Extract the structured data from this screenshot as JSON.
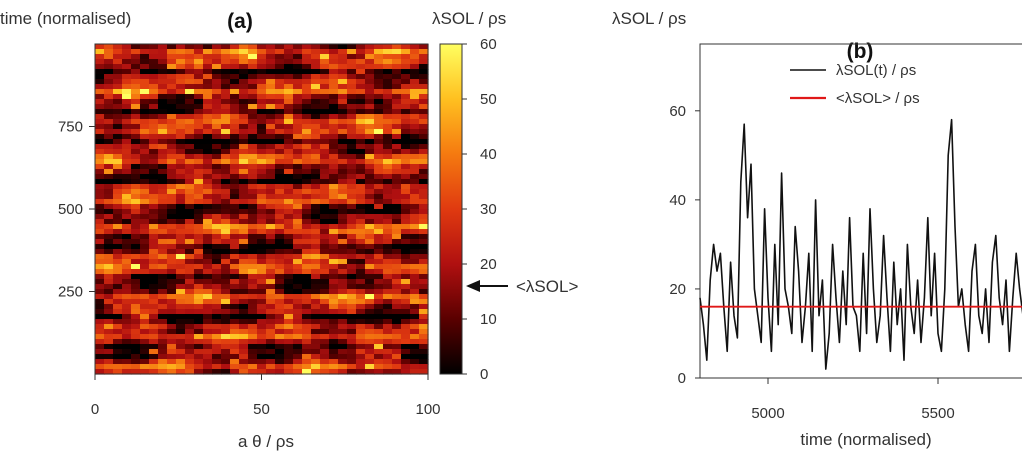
{
  "chart_data": [
    {
      "type": "heatmap",
      "panel_label": "(a)",
      "ylabel": "time (normalised)",
      "xlabel": "a θ / ρs",
      "xlim": [
        0,
        100
      ],
      "ylim": [
        0,
        1000
      ],
      "x_ticks": [
        "0",
        "50",
        "100"
      ],
      "y_ticks": [
        "250",
        "500",
        "750"
      ],
      "colorbar": {
        "label": "λSOL / ρs",
        "range": [
          0,
          60
        ],
        "ticks": [
          "0",
          "10",
          "20",
          "30",
          "40",
          "50",
          "60"
        ],
        "colormap": [
          "#000000",
          "#5a0000",
          "#b01010",
          "#e03a10",
          "#f57a10",
          "#ffc020",
          "#ffff60"
        ],
        "mean_value": 16,
        "mean_annotation": "<λSOL>"
      }
    },
    {
      "type": "line",
      "panel_label": "(b)",
      "ylabel": "λSOL / ρs",
      "xlabel": "time (normalised)",
      "xlim": [
        4800,
        5800
      ],
      "ylim": [
        0,
        75
      ],
      "x_ticks": [
        "5000",
        "5500"
      ],
      "y_ticks": [
        "0",
        "20",
        "40",
        "60"
      ],
      "legend_position": "top-right",
      "series": [
        {
          "name": "λSOL(t) / ρs",
          "color": "#111111",
          "x": [
            4800,
            4810,
            4820,
            4830,
            4840,
            4850,
            4860,
            4870,
            4880,
            4890,
            4900,
            4910,
            4920,
            4930,
            4940,
            4950,
            4960,
            4970,
            4980,
            4990,
            5000,
            5010,
            5020,
            5030,
            5040,
            5050,
            5060,
            5070,
            5080,
            5090,
            5100,
            5110,
            5120,
            5130,
            5140,
            5150,
            5160,
            5170,
            5180,
            5190,
            5200,
            5210,
            5220,
            5230,
            5240,
            5250,
            5260,
            5270,
            5280,
            5290,
            5300,
            5310,
            5320,
            5330,
            5340,
            5350,
            5360,
            5370,
            5380,
            5390,
            5400,
            5410,
            5420,
            5430,
            5440,
            5450,
            5460,
            5470,
            5480,
            5490,
            5500,
            5510,
            5520,
            5530,
            5540,
            5550,
            5560,
            5570,
            5580,
            5590,
            5600,
            5610,
            5620,
            5630,
            5640,
            5650,
            5660,
            5670,
            5680,
            5690,
            5700,
            5710,
            5720,
            5730,
            5740,
            5750,
            5760,
            5770,
            5780,
            5790,
            5800
          ],
          "values": [
            18,
            12,
            4,
            22,
            30,
            24,
            28,
            16,
            6,
            26,
            14,
            9,
            44,
            57,
            36,
            48,
            20,
            14,
            8,
            38,
            18,
            6,
            30,
            12,
            46,
            20,
            16,
            10,
            34,
            24,
            8,
            16,
            28,
            6,
            40,
            14,
            22,
            2,
            10,
            30,
            18,
            8,
            24,
            12,
            36,
            16,
            14,
            6,
            28,
            10,
            38,
            20,
            8,
            14,
            32,
            18,
            6,
            26,
            12,
            20,
            4,
            30,
            16,
            10,
            22,
            8,
            18,
            36,
            14,
            28,
            10,
            6,
            20,
            50,
            58,
            34,
            16,
            20,
            12,
            6,
            24,
            30,
            14,
            10,
            20,
            8,
            26,
            32,
            18,
            12,
            22,
            6,
            18,
            28,
            20,
            14,
            10,
            26,
            16,
            22,
            12
          ]
        },
        {
          "name": "<λSOL> / ρs",
          "color": "#e01818",
          "x": [
            4800,
            5800
          ],
          "values": [
            16,
            16
          ]
        }
      ]
    }
  ]
}
